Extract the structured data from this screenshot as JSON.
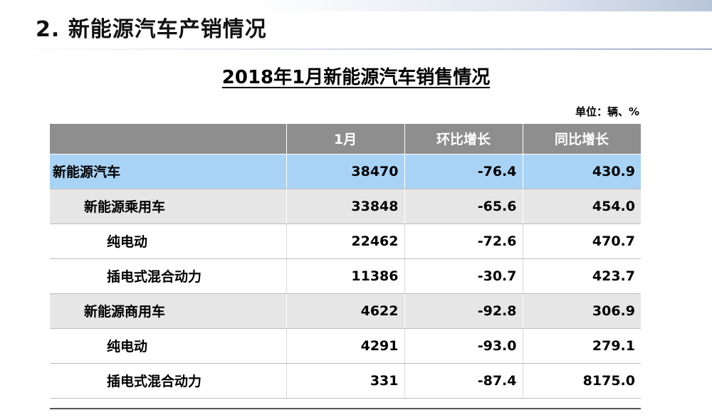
{
  "heading": "2. 新能源汽车产销情况",
  "table_title": "2018年1月新能源汽车销售情况",
  "unit": "单位：辆、%",
  "columns": [
    "",
    "1月",
    "环比增长",
    "同比增长"
  ],
  "rows": [
    {
      "name": "新能源汽车",
      "level": 0,
      "jan": "38470",
      "mom": "-76.4",
      "yoy": "430.9"
    },
    {
      "name": "新能源乘用车",
      "level": 1,
      "jan": "33848",
      "mom": "-65.6",
      "yoy": "454.0"
    },
    {
      "name": "纯电动",
      "level": 2,
      "jan": "22462",
      "mom": "-72.6",
      "yoy": "470.7"
    },
    {
      "name": "插电式混合动力",
      "level": 2,
      "jan": "11386",
      "mom": "-30.7",
      "yoy": "423.7"
    },
    {
      "name": "新能源商用车",
      "level": 1,
      "jan": "4622",
      "mom": "-92.8",
      "yoy": "306.9"
    },
    {
      "name": "纯电动",
      "level": 2,
      "jan": "4291",
      "mom": "-93.0",
      "yoy": "279.1"
    },
    {
      "name": "插电式混合动力",
      "level": 2,
      "jan": "331",
      "mom": "-87.4",
      "yoy": "8175.0"
    }
  ],
  "colors": {
    "header_bg": "#8e8e8e",
    "total_row_bg": "#a9d3f5",
    "category_row_bg": "#e6e6e6"
  }
}
